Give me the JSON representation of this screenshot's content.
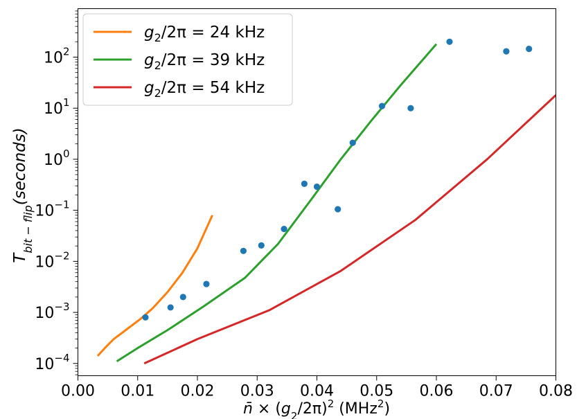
{
  "chart_data": {
    "type": "line",
    "xlabel": "n̄ × (g₂/2π)² (MHz²)",
    "ylabel": "T_bit−flip(seconds)",
    "xlim": [
      0.0,
      0.08
    ],
    "ylim": [
      5.75e-05,
      890
    ],
    "yscale": "log",
    "x_ticks": [
      "0.00",
      "0.01",
      "0.02",
      "0.03",
      "0.04",
      "0.05",
      "0.06",
      "0.07",
      "0.08"
    ],
    "y_ticks": [
      {
        "value": 0.0001,
        "base": "10",
        "exp": "−4"
      },
      {
        "value": 0.001,
        "base": "10",
        "exp": "−3"
      },
      {
        "value": 0.01,
        "base": "10",
        "exp": "−2"
      },
      {
        "value": 0.1,
        "base": "10",
        "exp": "−1"
      },
      {
        "value": 1,
        "base": "10",
        "exp": "0"
      },
      {
        "value": 10,
        "base": "10",
        "exp": "1"
      },
      {
        "value": 100,
        "base": "10",
        "exp": "2"
      }
    ],
    "legend_position": "top-left",
    "series": [
      {
        "name": "g₂/2π = 24 kHz",
        "legend_main": "g",
        "legend_sub": "2",
        "legend_rest": "/2π = 24 kHz",
        "color": "#ff7f0e",
        "kind": "line",
        "x": [
          0.0033,
          0.0045,
          0.006,
          0.008,
          0.0105,
          0.0125,
          0.015,
          0.0175,
          0.02,
          0.0225
        ],
        "y": [
          0.00014,
          0.0002,
          0.0003,
          0.00045,
          0.00075,
          0.0012,
          0.0025,
          0.006,
          0.018,
          0.08
        ]
      },
      {
        "name": "g₂/2π = 39 kHz",
        "legend_main": "g",
        "legend_sub": "2",
        "legend_rest": "/2π = 39 kHz",
        "color": "#2ca02c",
        "kind": "line",
        "x": [
          0.0065,
          0.01,
          0.015,
          0.021,
          0.028,
          0.0335,
          0.039,
          0.044,
          0.049,
          0.054,
          0.06
        ],
        "y": [
          0.00011,
          0.0002,
          0.00045,
          0.0013,
          0.0048,
          0.022,
          0.16,
          1.0,
          5.5,
          28,
          180
        ]
      },
      {
        "name": "g₂/2π = 54 kHz",
        "legend_main": "g",
        "legend_sub": "2",
        "legend_rest": "/2π = 54 kHz",
        "color": "#d62728",
        "kind": "line",
        "x": [
          0.0111,
          0.02,
          0.032,
          0.044,
          0.0565,
          0.0685,
          0.08
        ],
        "y": [
          0.0001,
          0.0003,
          0.0011,
          0.0065,
          0.065,
          1.0,
          18
        ]
      },
      {
        "color": "#1f77b4",
        "kind": "scatter",
        "x": [
          0.0113,
          0.0155,
          0.0176,
          0.0215,
          0.0277,
          0.0307,
          0.0345,
          0.0379,
          0.04,
          0.0435,
          0.046,
          0.0509,
          0.0557,
          0.0622,
          0.0717,
          0.0755
        ],
        "y": [
          0.0008,
          0.00125,
          0.002,
          0.0036,
          0.016,
          0.0205,
          0.043,
          0.33,
          0.29,
          0.105,
          2.1,
          11,
          10,
          200,
          130,
          145
        ]
      }
    ]
  }
}
